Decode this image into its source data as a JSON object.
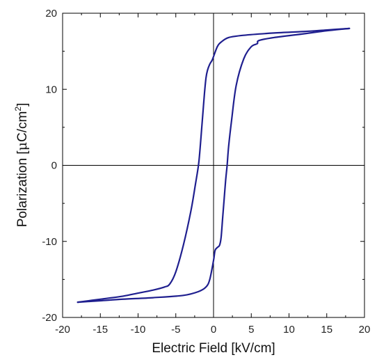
{
  "chart_data": {
    "type": "line",
    "xlabel": "Electric Field [kV/cm]",
    "ylabel": {
      "prefix": "Polarization [",
      "mu": "μ",
      "unit": "C/cm",
      "sup": "2",
      "suffix": "]"
    },
    "xlim": [
      -20,
      20
    ],
    "ylim": [
      -20,
      20
    ],
    "xticks": [
      -20,
      -15,
      -10,
      -5,
      0,
      5,
      10,
      15,
      20
    ],
    "yticks": [
      -20,
      -10,
      0,
      10,
      20
    ],
    "xtick_labels": [
      "-20",
      "-15",
      "-10",
      "-5",
      "0",
      "5",
      "10",
      "15",
      "20"
    ],
    "ytick_labels": [
      "-20",
      "-10",
      "0",
      "10",
      "20"
    ],
    "grid": false,
    "zero_lines": true,
    "line_color": "#1f1f8f",
    "series": [
      {
        "x": [
          -18,
          -15,
          -12,
          -10,
          -8,
          -6.5,
          -5.8,
          -5,
          -4,
          -3,
          -2.4,
          -2,
          -1.8,
          -1.6,
          -1.4,
          -1.2,
          -1.0,
          -0.8,
          -0.5,
          -0.2,
          0,
          0.5,
          1,
          2,
          4,
          8,
          12,
          15,
          18
        ],
        "y": [
          -18,
          -17.6,
          -17.2,
          -16.8,
          -16.4,
          -16.0,
          -15.6,
          -14.0,
          -10.5,
          -6.0,
          -2.5,
          0,
          2.0,
          4.5,
          7.0,
          9.5,
          11.5,
          12.5,
          13.3,
          13.8,
          14.3,
          15.6,
          16.2,
          16.8,
          17.1,
          17.4,
          17.6,
          17.8,
          18
        ]
      },
      {
        "x": [
          18,
          15,
          12,
          8,
          6,
          5.8,
          5,
          4,
          3,
          2.4,
          2,
          1.8,
          1.6,
          1.4,
          1.2,
          1.0,
          0.8,
          0.5,
          0.2,
          0,
          -0.5,
          -1,
          -2,
          -4,
          -8,
          -12,
          -15,
          -18
        ],
        "y": [
          18,
          17.7,
          17.3,
          16.8,
          16.4,
          16.0,
          15.6,
          14.0,
          10.5,
          6.0,
          2.5,
          0,
          -2.0,
          -4.5,
          -7.0,
          -9.5,
          -10.5,
          -10.8,
          -11.2,
          -12.5,
          -15.0,
          -16.0,
          -16.6,
          -17.1,
          -17.4,
          -17.6,
          -17.8,
          -18
        ]
      }
    ]
  }
}
